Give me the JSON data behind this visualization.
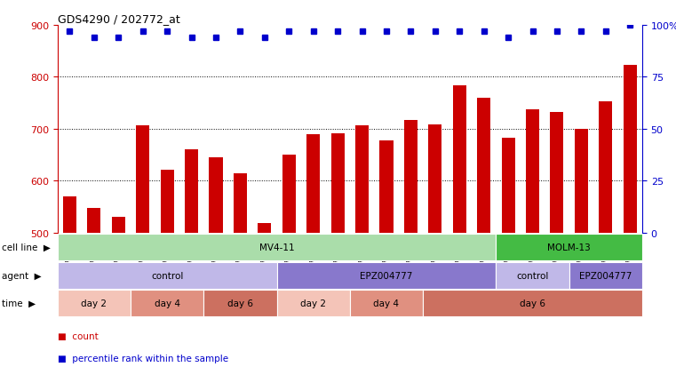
{
  "title": "GDS4290 / 202772_at",
  "samples": [
    "GSM739151",
    "GSM739152",
    "GSM739153",
    "GSM739157",
    "GSM739158",
    "GSM739159",
    "GSM739163",
    "GSM739164",
    "GSM739165",
    "GSM739148",
    "GSM739149",
    "GSM739150",
    "GSM739154",
    "GSM739155",
    "GSM739156",
    "GSM739160",
    "GSM739161",
    "GSM739162",
    "GSM739169",
    "GSM739170",
    "GSM739171",
    "GSM739166",
    "GSM739167",
    "GSM739168"
  ],
  "counts": [
    570,
    548,
    530,
    707,
    622,
    660,
    645,
    615,
    518,
    650,
    690,
    692,
    707,
    678,
    717,
    708,
    783,
    760,
    682,
    738,
    733,
    700,
    753,
    823
  ],
  "percentile_ranks": [
    97,
    94,
    94,
    97,
    97,
    94,
    94,
    97,
    94,
    97,
    97,
    97,
    97,
    97,
    97,
    97,
    97,
    97,
    94,
    97,
    97,
    97,
    97,
    100
  ],
  "ylim_left": [
    500,
    900
  ],
  "ylim_right": [
    0,
    100
  ],
  "yticks_left": [
    500,
    600,
    700,
    800,
    900
  ],
  "yticks_right": [
    0,
    25,
    50,
    75,
    100
  ],
  "bar_color": "#cc0000",
  "dot_color": "#0000cc",
  "cell_line_regions": [
    {
      "label": "MV4-11",
      "start": 0,
      "end": 18,
      "color": "#aaddaa"
    },
    {
      "label": "MOLM-13",
      "start": 18,
      "end": 24,
      "color": "#44bb44"
    }
  ],
  "agent_regions": [
    {
      "label": "control",
      "start": 0,
      "end": 9,
      "color": "#c0b8e8"
    },
    {
      "label": "EPZ004777",
      "start": 9,
      "end": 18,
      "color": "#8878cc"
    },
    {
      "label": "control",
      "start": 18,
      "end": 21,
      "color": "#c0b8e8"
    },
    {
      "label": "EPZ004777",
      "start": 21,
      "end": 24,
      "color": "#8878cc"
    }
  ],
  "time_regions": [
    {
      "label": "day 2",
      "start": 0,
      "end": 3,
      "color": "#f4c4b8"
    },
    {
      "label": "day 4",
      "start": 3,
      "end": 6,
      "color": "#e09080"
    },
    {
      "label": "day 6",
      "start": 6,
      "end": 9,
      "color": "#cc7060"
    },
    {
      "label": "day 2",
      "start": 9,
      "end": 12,
      "color": "#f4c4b8"
    },
    {
      "label": "day 4",
      "start": 12,
      "end": 15,
      "color": "#e09080"
    },
    {
      "label": "day 6",
      "start": 15,
      "end": 24,
      "color": "#cc7060"
    }
  ],
  "n_bars": 24
}
